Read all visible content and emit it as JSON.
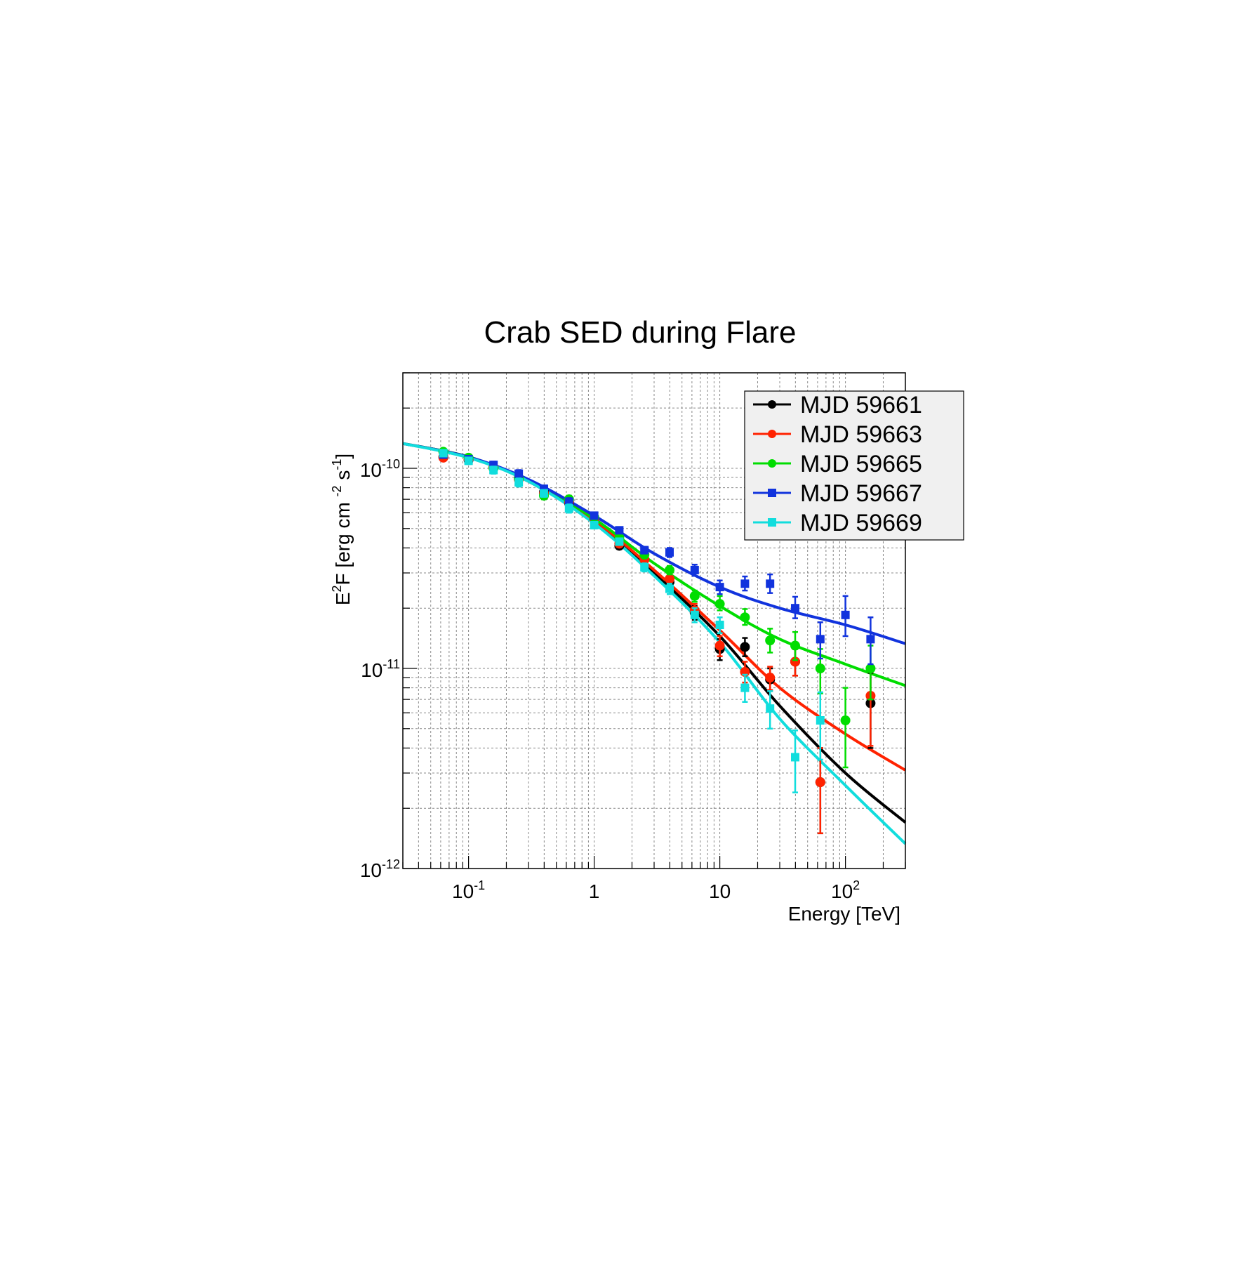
{
  "chart_data": {
    "type": "scatter",
    "title": "Crab SED during Flare",
    "xlabel": "Energy [TeV]",
    "ylabel": {
      "base": "E",
      "sup": "2",
      "rest": "F [erg cm",
      "cm_exp": "-2",
      "s": "s",
      "s_exp": "-1",
      "close": "]"
    },
    "xscale": "log",
    "yscale": "log",
    "xlim": [
      0.03,
      300
    ],
    "ylim": [
      1e-12,
      3e-10
    ],
    "grid": true,
    "legend_position": "top-right",
    "x_ticks": [
      {
        "value": 0.1,
        "label": "10",
        "sup": "-1"
      },
      {
        "value": 1,
        "label": "1",
        "sup": ""
      },
      {
        "value": 10,
        "label": "10",
        "sup": ""
      },
      {
        "value": 100,
        "label": "10",
        "sup": "2"
      }
    ],
    "y_ticks": [
      {
        "value": 1e-10,
        "label": "10",
        "sup": "-10"
      },
      {
        "value": 1e-11,
        "label": "10",
        "sup": "-11"
      },
      {
        "value": 1e-12,
        "label": "10",
        "sup": "-12"
      }
    ],
    "series": [
      {
        "name": "MJD 59661",
        "color": "#000000",
        "marker": "circle",
        "points": [
          {
            "x": 0.063,
            "y": 1.14e-10,
            "lo": 1.1e-10,
            "hi": 1.18e-10
          },
          {
            "x": 0.1,
            "y": 1.1e-10,
            "lo": 1.06e-10,
            "hi": 1.14e-10
          },
          {
            "x": 0.158,
            "y": 1.01e-10,
            "lo": 9.7e-11,
            "hi": 1.05e-10
          },
          {
            "x": 0.251,
            "y": 8.9e-11,
            "lo": 8.5e-11,
            "hi": 9.3e-11
          },
          {
            "x": 0.398,
            "y": 7.6e-11,
            "lo": 7.3e-11,
            "hi": 7.9e-11
          },
          {
            "x": 0.631,
            "y": 6.7e-11,
            "lo": 6.4e-11,
            "hi": 7e-11
          },
          {
            "x": 1.0,
            "y": 5.6e-11,
            "lo": 5.4e-11,
            "hi": 5.8e-11
          },
          {
            "x": 1.585,
            "y": 4.1e-11,
            "lo": 3.95e-11,
            "hi": 4.25e-11
          },
          {
            "x": 2.512,
            "y": 3.5e-11,
            "lo": 3.35e-11,
            "hi": 3.65e-11
          },
          {
            "x": 3.981,
            "y": 2.7e-11,
            "lo": 2.55e-11,
            "hi": 2.85e-11
          },
          {
            "x": 6.31,
            "y": 1.9e-11,
            "lo": 1.75e-11,
            "hi": 2.05e-11
          },
          {
            "x": 10.0,
            "y": 1.25e-11,
            "lo": 1.1e-11,
            "hi": 1.4e-11
          },
          {
            "x": 15.85,
            "y": 1.28e-11,
            "lo": 1.15e-11,
            "hi": 1.42e-11
          },
          {
            "x": 25.12,
            "y": 8.8e-12,
            "lo": 7.7e-12,
            "hi": 1e-11
          },
          {
            "x": 39.81,
            "y": 1.08e-11,
            "lo": 9.2e-12,
            "hi": 1.25e-11
          },
          {
            "x": 63.1,
            "y": 2.7e-12,
            "lo": 1.5e-12,
            "hi": 4e-12
          },
          {
            "x": 158.5,
            "y": 6.7e-12,
            "lo": 4e-12,
            "hi": 9.5e-12
          }
        ],
        "model": [
          [
            0.03,
            1.33e-10
          ],
          [
            0.1,
            1.14e-10
          ],
          [
            0.3,
            8.6e-11
          ],
          [
            1,
            5.4e-11
          ],
          [
            3,
            3e-11
          ],
          [
            10,
            1.45e-11
          ],
          [
            30,
            6.5e-12
          ],
          [
            100,
            3e-12
          ],
          [
            300,
            1.7e-12
          ]
        ]
      },
      {
        "name": "MJD 59663",
        "color": "#ff2200",
        "marker": "circle",
        "points": [
          {
            "x": 0.063,
            "y": 1.13e-10,
            "lo": 1.09e-10,
            "hi": 1.17e-10
          },
          {
            "x": 0.1,
            "y": 1.11e-10,
            "lo": 1.07e-10,
            "hi": 1.15e-10
          },
          {
            "x": 0.158,
            "y": 1.01e-10,
            "lo": 9.7e-11,
            "hi": 1.05e-10
          },
          {
            "x": 0.251,
            "y": 8.8e-11,
            "lo": 8.4e-11,
            "hi": 9.2e-11
          },
          {
            "x": 0.398,
            "y": 7.5e-11,
            "lo": 7.2e-11,
            "hi": 7.8e-11
          },
          {
            "x": 0.631,
            "y": 6.8e-11,
            "lo": 6.5e-11,
            "hi": 7.1e-11
          },
          {
            "x": 1.0,
            "y": 5.6e-11,
            "lo": 5.4e-11,
            "hi": 5.8e-11
          },
          {
            "x": 1.585,
            "y": 4.2e-11,
            "lo": 4.05e-11,
            "hi": 4.35e-11
          },
          {
            "x": 2.512,
            "y": 3.5e-11,
            "lo": 3.35e-11,
            "hi": 3.65e-11
          },
          {
            "x": 3.981,
            "y": 2.8e-11,
            "lo": 2.65e-11,
            "hi": 2.95e-11
          },
          {
            "x": 6.31,
            "y": 1.95e-11,
            "lo": 1.8e-11,
            "hi": 2.1e-11
          },
          {
            "x": 10.0,
            "y": 1.3e-11,
            "lo": 1.15e-11,
            "hi": 1.45e-11
          },
          {
            "x": 15.85,
            "y": 9.6e-12,
            "lo": 8.5e-12,
            "hi": 1.08e-11
          },
          {
            "x": 25.12,
            "y": 9e-12,
            "lo": 7.8e-12,
            "hi": 1.02e-11
          },
          {
            "x": 39.81,
            "y": 1.08e-11,
            "lo": 9.2e-12,
            "hi": 1.25e-11
          },
          {
            "x": 63.1,
            "y": 2.7e-12,
            "lo": 1.5e-12,
            "hi": 4e-12
          },
          {
            "x": 158.5,
            "y": 7.3e-12,
            "lo": 4.1e-12,
            "hi": 9.6e-12
          }
        ],
        "model": [
          [
            0.03,
            1.33e-10
          ],
          [
            0.1,
            1.14e-10
          ],
          [
            0.3,
            8.7e-11
          ],
          [
            1,
            5.5e-11
          ],
          [
            3,
            3.1e-11
          ],
          [
            10,
            1.55e-11
          ],
          [
            30,
            8e-12
          ],
          [
            100,
            4.7e-12
          ],
          [
            300,
            3.1e-12
          ]
        ]
      },
      {
        "name": "MJD 59665",
        "color": "#00dd00",
        "marker": "circle",
        "points": [
          {
            "x": 0.063,
            "y": 1.21e-10,
            "lo": 1.17e-10,
            "hi": 1.25e-10
          },
          {
            "x": 0.1,
            "y": 1.13e-10,
            "lo": 1.09e-10,
            "hi": 1.17e-10
          },
          {
            "x": 0.158,
            "y": 1e-10,
            "lo": 9.6e-11,
            "hi": 1.04e-10
          },
          {
            "x": 0.251,
            "y": 8.9e-11,
            "lo": 8.5e-11,
            "hi": 9.3e-11
          },
          {
            "x": 0.398,
            "y": 7.3e-11,
            "lo": 7e-11,
            "hi": 7.6e-11
          },
          {
            "x": 0.631,
            "y": 7e-11,
            "lo": 6.7e-11,
            "hi": 7.3e-11
          },
          {
            "x": 1.0,
            "y": 5.7e-11,
            "lo": 5.5e-11,
            "hi": 5.9e-11
          },
          {
            "x": 1.585,
            "y": 4.5e-11,
            "lo": 4.35e-11,
            "hi": 4.65e-11
          },
          {
            "x": 2.512,
            "y": 3.7e-11,
            "lo": 3.55e-11,
            "hi": 3.85e-11
          },
          {
            "x": 3.981,
            "y": 3.1e-11,
            "lo": 2.95e-11,
            "hi": 3.25e-11
          },
          {
            "x": 6.31,
            "y": 2.3e-11,
            "lo": 2.15e-11,
            "hi": 2.45e-11
          },
          {
            "x": 10.0,
            "y": 2.1e-11,
            "lo": 1.95e-11,
            "hi": 2.3e-11
          },
          {
            "x": 15.85,
            "y": 1.8e-11,
            "lo": 1.65e-11,
            "hi": 1.98e-11
          },
          {
            "x": 25.12,
            "y": 1.38e-11,
            "lo": 1.2e-11,
            "hi": 1.58e-11
          },
          {
            "x": 39.81,
            "y": 1.3e-11,
            "lo": 1.1e-11,
            "hi": 1.52e-11
          },
          {
            "x": 63.1,
            "y": 1e-11,
            "lo": 7.5e-12,
            "hi": 1.25e-11
          },
          {
            "x": 100.0,
            "y": 5.5e-12,
            "lo": 3.2e-12,
            "hi": 8e-12
          },
          {
            "x": 158.5,
            "y": 1e-11,
            "lo": 7e-12,
            "hi": 1.3e-11
          }
        ],
        "model": [
          [
            0.03,
            1.33e-10
          ],
          [
            0.1,
            1.14e-10
          ],
          [
            0.3,
            8.7e-11
          ],
          [
            1,
            5.6e-11
          ],
          [
            3,
            3.35e-11
          ],
          [
            10,
            2.05e-11
          ],
          [
            30,
            1.4e-11
          ],
          [
            100,
            1.05e-11
          ],
          [
            300,
            8.2e-12
          ]
        ]
      },
      {
        "name": "MJD 59667",
        "color": "#1133dd",
        "marker": "square",
        "points": [
          {
            "x": 0.063,
            "y": 1.17e-10,
            "lo": 1.13e-10,
            "hi": 1.21e-10
          },
          {
            "x": 0.1,
            "y": 1.11e-10,
            "lo": 1.07e-10,
            "hi": 1.15e-10
          },
          {
            "x": 0.158,
            "y": 1.04e-10,
            "lo": 1e-10,
            "hi": 1.08e-10
          },
          {
            "x": 0.251,
            "y": 9.4e-11,
            "lo": 9e-11,
            "hi": 9.8e-11
          },
          {
            "x": 0.398,
            "y": 7.9e-11,
            "lo": 7.6e-11,
            "hi": 8.2e-11
          },
          {
            "x": 0.631,
            "y": 6.8e-11,
            "lo": 6.5e-11,
            "hi": 7.1e-11
          },
          {
            "x": 1.0,
            "y": 5.8e-11,
            "lo": 5.6e-11,
            "hi": 6e-11
          },
          {
            "x": 1.585,
            "y": 4.9e-11,
            "lo": 4.75e-11,
            "hi": 5.05e-11
          },
          {
            "x": 2.512,
            "y": 3.9e-11,
            "lo": 3.75e-11,
            "hi": 4.05e-11
          },
          {
            "x": 3.981,
            "y": 3.8e-11,
            "lo": 3.6e-11,
            "hi": 4e-11
          },
          {
            "x": 6.31,
            "y": 3.1e-11,
            "lo": 2.9e-11,
            "hi": 3.3e-11
          },
          {
            "x": 10.0,
            "y": 2.55e-11,
            "lo": 2.35e-11,
            "hi": 2.75e-11
          },
          {
            "x": 15.85,
            "y": 2.65e-11,
            "lo": 2.45e-11,
            "hi": 2.88e-11
          },
          {
            "x": 25.12,
            "y": 2.65e-11,
            "lo": 2.38e-11,
            "hi": 2.95e-11
          },
          {
            "x": 39.81,
            "y": 2e-11,
            "lo": 1.78e-11,
            "hi": 2.28e-11
          },
          {
            "x": 63.1,
            "y": 1.4e-11,
            "lo": 1.12e-11,
            "hi": 1.7e-11
          },
          {
            "x": 100.0,
            "y": 1.85e-11,
            "lo": 1.45e-11,
            "hi": 2.3e-11
          },
          {
            "x": 158.5,
            "y": 1.4e-11,
            "lo": 1.05e-11,
            "hi": 1.8e-11
          }
        ],
        "model": [
          [
            0.03,
            1.33e-10
          ],
          [
            0.1,
            1.14e-10
          ],
          [
            0.3,
            8.8e-11
          ],
          [
            1,
            5.8e-11
          ],
          [
            3,
            3.75e-11
          ],
          [
            10,
            2.55e-11
          ],
          [
            30,
            2e-11
          ],
          [
            100,
            1.65e-11
          ],
          [
            300,
            1.33e-11
          ]
        ]
      },
      {
        "name": "MJD 59669",
        "color": "#11dddd",
        "marker": "square",
        "points": [
          {
            "x": 0.063,
            "y": 1.19e-10,
            "lo": 1.15e-10,
            "hi": 1.23e-10
          },
          {
            "x": 0.1,
            "y": 1.09e-10,
            "lo": 1.05e-10,
            "hi": 1.13e-10
          },
          {
            "x": 0.158,
            "y": 9.8e-11,
            "lo": 9.4e-11,
            "hi": 1.02e-10
          },
          {
            "x": 0.251,
            "y": 8.5e-11,
            "lo": 8.1e-11,
            "hi": 8.9e-11
          },
          {
            "x": 0.398,
            "y": 7.5e-11,
            "lo": 7.2e-11,
            "hi": 7.8e-11
          },
          {
            "x": 0.631,
            "y": 6.3e-11,
            "lo": 6e-11,
            "hi": 6.6e-11
          },
          {
            "x": 1.0,
            "y": 5.2e-11,
            "lo": 5e-11,
            "hi": 5.4e-11
          },
          {
            "x": 1.585,
            "y": 4.3e-11,
            "lo": 4.15e-11,
            "hi": 4.45e-11
          },
          {
            "x": 2.512,
            "y": 3.2e-11,
            "lo": 3.05e-11,
            "hi": 3.35e-11
          },
          {
            "x": 3.981,
            "y": 2.5e-11,
            "lo": 2.35e-11,
            "hi": 2.65e-11
          },
          {
            "x": 6.31,
            "y": 1.85e-11,
            "lo": 1.7e-11,
            "hi": 2e-11
          },
          {
            "x": 10.0,
            "y": 1.65e-11,
            "lo": 1.5e-11,
            "hi": 1.8e-11
          },
          {
            "x": 15.85,
            "y": 8e-12,
            "lo": 6.8e-12,
            "hi": 9.3e-12
          },
          {
            "x": 25.12,
            "y": 6.3e-12,
            "lo": 5e-12,
            "hi": 7.7e-12
          },
          {
            "x": 39.81,
            "y": 3.6e-12,
            "lo": 2.4e-12,
            "hi": 4.9e-12
          },
          {
            "x": 63.1,
            "y": 5.5e-12,
            "lo": 3.5e-12,
            "hi": 7.6e-12
          }
        ],
        "model": [
          [
            0.03,
            1.33e-10
          ],
          [
            0.1,
            1.13e-10
          ],
          [
            0.3,
            8.6e-11
          ],
          [
            1,
            5.3e-11
          ],
          [
            3,
            2.9e-11
          ],
          [
            10,
            1.35e-11
          ],
          [
            30,
            5.6e-12
          ],
          [
            100,
            2.6e-12
          ],
          [
            300,
            1.33e-12
          ]
        ]
      }
    ]
  }
}
